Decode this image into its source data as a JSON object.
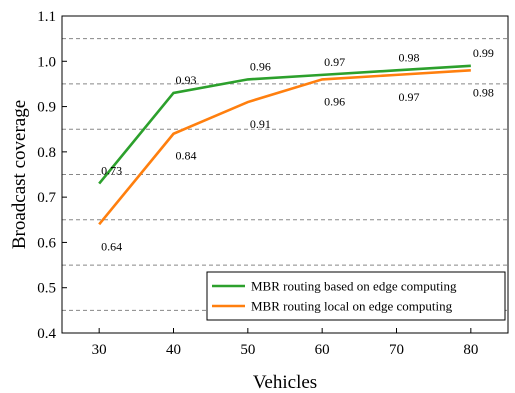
{
  "chart_data": {
    "type": "line",
    "xlabel": "Vehicles",
    "ylabel": "Broadcast coverage",
    "x": [
      30,
      40,
      50,
      60,
      70,
      80
    ],
    "xlim": [
      25,
      85
    ],
    "ylim": [
      0.4,
      1.1
    ],
    "xticks": [
      "30",
      "40",
      "50",
      "60",
      "70",
      "80"
    ],
    "yticks": [
      "0.4",
      "0.5",
      "0.6",
      "0.7",
      "0.8",
      "0.9",
      "1.0",
      "1.1"
    ],
    "grid": "dashed horizontal",
    "gridlines": [
      0.45,
      0.55,
      0.65,
      0.75,
      0.85,
      0.95,
      1.05
    ],
    "legend_position": "lower-right",
    "series": [
      {
        "name": "MBR routing based on edge computing",
        "color": "#2ca02c",
        "values": [
          0.73,
          0.93,
          0.96,
          0.97,
          0.98,
          0.99
        ],
        "labels": [
          "0.73",
          "0.93",
          "0.96",
          "0.97",
          "0.98",
          "0.99"
        ],
        "label_side": "above"
      },
      {
        "name": "MBR routing local on edge computing",
        "color": "#ff7f0e",
        "values": [
          0.64,
          0.84,
          0.91,
          0.96,
          0.97,
          0.98
        ],
        "labels": [
          "0.64",
          "0.84",
          "0.91",
          "0.96",
          "0.97",
          "0.98"
        ],
        "label_side": "below"
      }
    ]
  }
}
